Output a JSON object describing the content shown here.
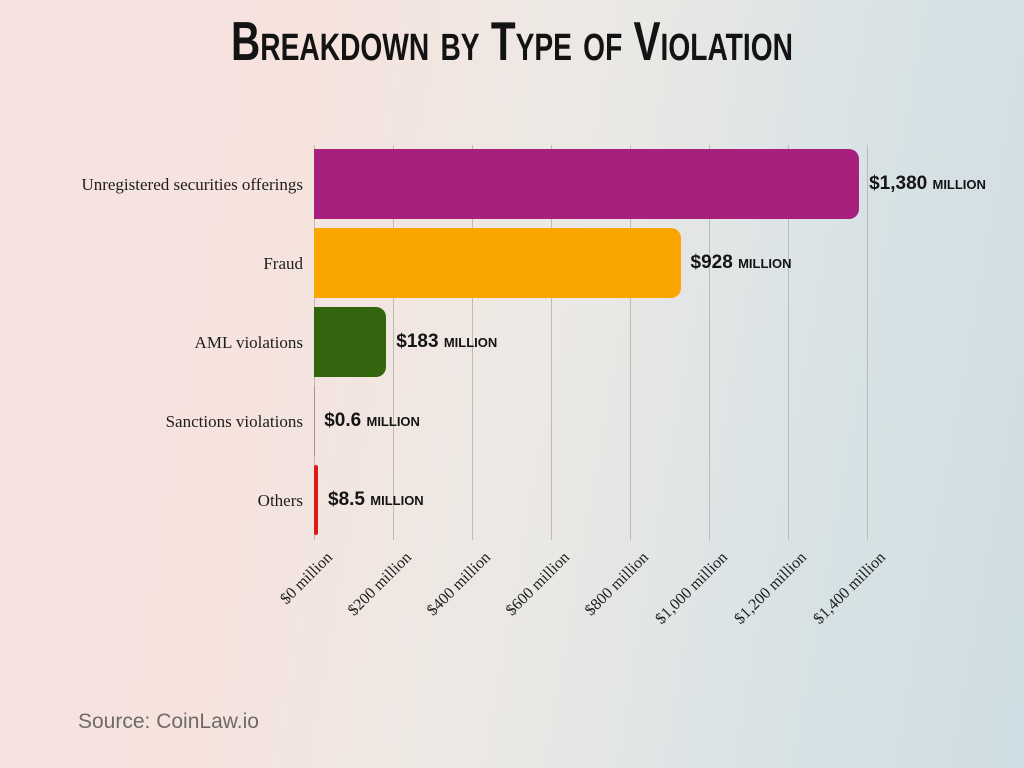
{
  "title": "Breakdown by Type of Violation",
  "source": "Source: CoinLaw.io",
  "colors": {
    "title_text": "#131313",
    "gridline": "#bfbab5",
    "source_text": "#6f6a67",
    "background_left": "#f5e1e0",
    "background_right": "#cedde3"
  },
  "chart_data": {
    "type": "bar",
    "orientation": "horizontal",
    "title": "Breakdown by Type of Violation",
    "xlabel": "",
    "ylabel": "",
    "xlim": [
      0,
      1400
    ],
    "grid": "vertical",
    "legend": "none",
    "categories": [
      "Unregistered securities offerings",
      "Fraud",
      "AML violations",
      "Sanctions violations",
      "Others"
    ],
    "values": [
      1380,
      928,
      183,
      0.6,
      8.5
    ],
    "value_labels": [
      "$1,380 million",
      "$928 million",
      "$183 million",
      "$0.6 million",
      "$8.5 million"
    ],
    "bar_colors": [
      "#a7207e",
      "#fba600",
      "#33650f",
      "#999999",
      "#e01a1a"
    ],
    "x_tick_values": [
      0,
      200,
      400,
      600,
      800,
      1000,
      1200,
      1400
    ],
    "x_tick_labels": [
      "$0 million",
      "$200 million",
      "$400 million",
      "$600 million",
      "$800 million",
      "$1,000 million",
      "$1,200 million",
      "$1,400 million"
    ]
  }
}
